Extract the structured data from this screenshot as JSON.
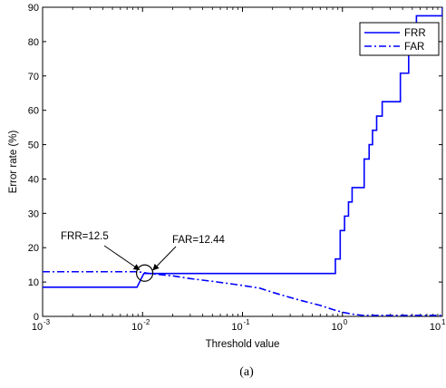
{
  "chart_data": {
    "type": "line",
    "xscale": "log",
    "xlim": [
      0.001,
      10
    ],
    "ylim": [
      0,
      90
    ],
    "xlabel": "Threshold value",
    "ylabel": "Error rate (%)",
    "caption": "(a)",
    "x_tick_labels": [
      {
        "base": "10",
        "exp": "-3",
        "value": 0.001
      },
      {
        "base": "10",
        "exp": "-2",
        "value": 0.01
      },
      {
        "base": "10",
        "exp": "-1",
        "value": 0.1
      },
      {
        "base": "10",
        "exp": "0",
        "value": 1
      },
      {
        "base": "10",
        "exp": "1",
        "value": 10
      }
    ],
    "y_ticks": [
      "0",
      "10",
      "20",
      "30",
      "40",
      "50",
      "60",
      "70",
      "80",
      "90"
    ],
    "legend": {
      "position": "top-right",
      "entries": [
        {
          "name": "FRR",
          "style": "solid"
        },
        {
          "name": "FAR",
          "style": "dash-dot"
        }
      ]
    },
    "annotations": [
      {
        "text": "FRR=12.5",
        "x": 0.0097,
        "y": 12.5
      },
      {
        "text": "FAR=12.44",
        "x": 0.0117,
        "y": 12.44
      }
    ],
    "series": [
      {
        "name": "FRR",
        "style": "solid",
        "color": "#0000ff",
        "x": [
          0.001,
          0.0088,
          0.0103,
          0.53,
          0.85,
          0.95,
          1.05,
          1.15,
          1.25,
          1.45,
          1.65,
          1.85,
          2.0,
          2.2,
          2.5,
          2.8,
          3.8,
          4.6,
          5.5,
          7.0,
          10
        ],
        "y": [
          8.5,
          8.5,
          12.5,
          12.5,
          16.7,
          25.0,
          29.2,
          33.3,
          37.5,
          37.5,
          45.8,
          50.0,
          54.2,
          58.3,
          62.5,
          62.5,
          70.8,
          79.2,
          87.5,
          87.5,
          91.7
        ]
      },
      {
        "name": "FAR",
        "style": "dash-dot",
        "color": "#0000ff",
        "x": [
          0.001,
          0.009,
          0.012,
          0.02,
          0.03,
          0.05,
          0.08,
          0.1,
          0.15,
          0.2,
          0.3,
          0.4,
          0.6,
          0.8,
          1.0,
          1.3,
          1.6,
          2.0,
          4.0,
          10
        ],
        "y": [
          13.0,
          13.0,
          12.44,
          11.8,
          11.0,
          10.2,
          9.4,
          9.0,
          8.2,
          7.0,
          5.5,
          4.5,
          3.2,
          2.0,
          1.2,
          0.6,
          0.3,
          0.3,
          0.3,
          0.3
        ]
      }
    ]
  }
}
